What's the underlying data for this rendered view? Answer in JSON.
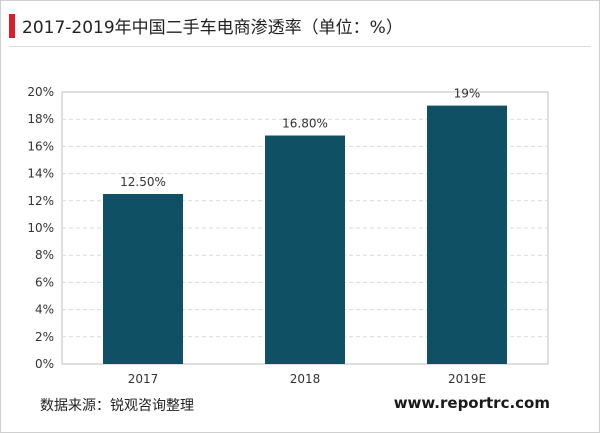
{
  "title": "2017-2019年中国二手车电商渗透率（单位：%）",
  "source_text": "数据来源：锐观咨询整理",
  "watermark": "www.reportrc.com",
  "colors": {
    "bar": "#0f5064",
    "accent": "#d9202a",
    "grid": "#d9d9d9",
    "axis": "#bfbfbf"
  },
  "chart_data": {
    "type": "bar",
    "categories": [
      "2017",
      "2018",
      "2019E"
    ],
    "values": [
      12.5,
      16.8,
      19
    ],
    "value_labels": [
      "12.50%",
      "16.80%",
      "19%"
    ],
    "yticks": [
      "0%",
      "2%",
      "4%",
      "6%",
      "8%",
      "10%",
      "12%",
      "14%",
      "16%",
      "18%",
      "20%"
    ],
    "ylim": [
      0,
      20
    ],
    "grid": true,
    "grid_style": "dashed",
    "legend": "none"
  }
}
